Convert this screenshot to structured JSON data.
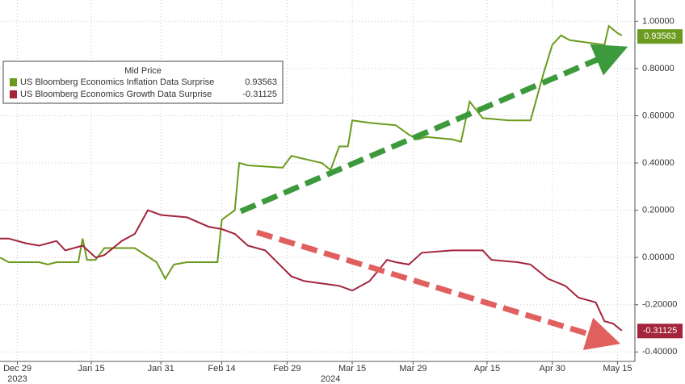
{
  "chart_data": {
    "type": "line",
    "legend_title": "Mid Price",
    "xlim": [
      "2023-12-25",
      "2024-05-19"
    ],
    "xticks": [
      {
        "value": "2023-12-29",
        "label": "Dec 29"
      },
      {
        "value": "2024-01-15",
        "label": "Jan 15"
      },
      {
        "value": "2024-01-31",
        "label": "Jan 31"
      },
      {
        "value": "2024-02-14",
        "label": "Feb 14"
      },
      {
        "value": "2024-02-29",
        "label": "Feb 29"
      },
      {
        "value": "2024-03-15",
        "label": "Mar 15"
      },
      {
        "value": "2024-03-29",
        "label": "Mar 29"
      },
      {
        "value": "2024-04-15",
        "label": "Apr 15"
      },
      {
        "value": "2024-04-30",
        "label": "Apr 30"
      },
      {
        "value": "2024-05-15",
        "label": "May 15"
      }
    ],
    "x_year_labels": [
      {
        "value": "2023-12-29",
        "label": "2023"
      },
      {
        "value": "2024-03-10",
        "label": "2024"
      }
    ],
    "ylim": [
      -0.44,
      1.09
    ],
    "yticks": [
      {
        "value": 1,
        "label": "1.00000"
      },
      {
        "value": 0.8,
        "label": "0.80000"
      },
      {
        "value": 0.6,
        "label": "0.60000"
      },
      {
        "value": 0.4,
        "label": "0.40000"
      },
      {
        "value": 0.2,
        "label": "0.20000"
      },
      {
        "value": 0,
        "label": "0.00000"
      },
      {
        "value": -0.2,
        "label": "-0.20000"
      },
      {
        "value": -0.4,
        "label": "-0.40000"
      }
    ],
    "grid": true,
    "series": [
      {
        "name": "US Bloomberg Economics Inflation Data Surprise",
        "color": "#6b9b1e",
        "last": 0.93563,
        "x": [
          "2023-12-25",
          "2023-12-27",
          "2024-01-03",
          "2024-01-05",
          "2024-01-07",
          "2024-01-12",
          "2024-01-13",
          "2024-01-14",
          "2024-01-16",
          "2024-01-18",
          "2024-01-25",
          "2024-01-30",
          "2024-02-01",
          "2024-02-03",
          "2024-02-06",
          "2024-02-13",
          "2024-02-14",
          "2024-02-17",
          "2024-02-18",
          "2024-02-20",
          "2024-02-28",
          "2024-03-01",
          "2024-03-08",
          "2024-03-10",
          "2024-03-12",
          "2024-03-14",
          "2024-03-15",
          "2024-03-19",
          "2024-03-25",
          "2024-03-28",
          "2024-03-30",
          "2024-04-01",
          "2024-04-07",
          "2024-04-09",
          "2024-04-11",
          "2024-04-14",
          "2024-04-20",
          "2024-04-25",
          "2024-04-28",
          "2024-04-30",
          "2024-05-02",
          "2024-05-04",
          "2024-05-12",
          "2024-05-13",
          "2024-05-15",
          "2024-05-16"
        ],
        "values": [
          0,
          -0.02,
          -0.02,
          -0.03,
          -0.02,
          -0.02,
          0.08,
          -0.01,
          -0.01,
          0.04,
          0.04,
          -0.02,
          -0.09,
          -0.03,
          -0.02,
          -0.02,
          0.16,
          0.2,
          0.4,
          0.39,
          0.38,
          0.43,
          0.4,
          0.37,
          0.47,
          0.47,
          0.58,
          0.57,
          0.56,
          0.52,
          0.5,
          0.51,
          0.5,
          0.49,
          0.66,
          0.59,
          0.58,
          0.58,
          0.78,
          0.9,
          0.94,
          0.92,
          0.9,
          0.98,
          0.95,
          0.94
        ]
      },
      {
        "name": "US Bloomberg Economics Growth Data Surprise",
        "color": "#a3243b",
        "last": -0.31125,
        "x": [
          "2023-12-25",
          "2023-12-27",
          "2023-12-31",
          "2024-01-03",
          "2024-01-07",
          "2024-01-09",
          "2024-01-13",
          "2024-01-16",
          "2024-01-18",
          "2024-01-22",
          "2024-01-25",
          "2024-01-28",
          "2024-01-31",
          "2024-02-06",
          "2024-02-11",
          "2024-02-14",
          "2024-02-17",
          "2024-02-20",
          "2024-02-24",
          "2024-03-01",
          "2024-03-04",
          "2024-03-08",
          "2024-03-12",
          "2024-03-15",
          "2024-03-19",
          "2024-03-23",
          "2024-03-25",
          "2024-03-28",
          "2024-03-31",
          "2024-04-07",
          "2024-04-12",
          "2024-04-14",
          "2024-04-16",
          "2024-04-22",
          "2024-04-25",
          "2024-04-29",
          "2024-05-03",
          "2024-05-06",
          "2024-05-10",
          "2024-05-12",
          "2024-05-14",
          "2024-05-16"
        ],
        "values": [
          0.08,
          0.08,
          0.06,
          0.05,
          0.07,
          0.03,
          0.05,
          0,
          0.01,
          0.07,
          0.1,
          0.2,
          0.18,
          0.17,
          0.13,
          0.12,
          0.1,
          0.05,
          0.03,
          -0.08,
          -0.1,
          -0.11,
          -0.12,
          -0.14,
          -0.1,
          -0.01,
          -0.02,
          -0.03,
          0.02,
          0.03,
          0.03,
          0.03,
          -0.01,
          -0.02,
          -0.03,
          -0.09,
          -0.12,
          -0.17,
          -0.19,
          -0.27,
          -0.28,
          -0.31
        ]
      }
    ]
  }
}
